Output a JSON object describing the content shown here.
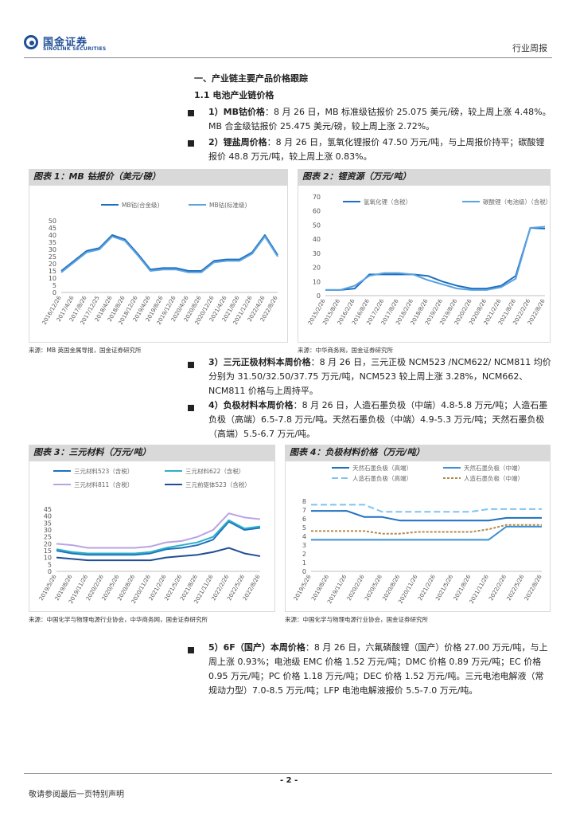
{
  "header": {
    "logo_cn": "国金证券",
    "logo_en": "SINOLINK SECURITIES",
    "report_type": "行业周报"
  },
  "section": {
    "h1": "一、产业链主要产品价格跟踪",
    "h2": "1.1 电池产业链价格"
  },
  "paras": {
    "p1_head": "1）MB钴价格",
    "p1_body": "：8 月 26 日，MB 标准级钴报价 25.075 美元/磅，较上周上涨 4.48%。MB 合金级钴报价 25.475 美元/磅，较上周上涨 2.72%。",
    "p2_head": "2）锂盐周价格",
    "p2_body": "：8 月 26 日，氢氧化锂报价 47.50 万元/吨，与上周报价持平；碳酸锂报价 48.8 万元/吨，较上周上涨 0.83%。",
    "p3_head": "3）三元正极材料本周价格",
    "p3_body": "：8 月 26 日，三元正极 NCM523 /NCM622/ NCM811 均价分别为 31.50/32.50/37.75 万元/吨，NCM523 较上周上涨 3.28%，NCM662、NCM811 价格与上周持平。",
    "p4_head": "4）负极材料本周价格",
    "p4_body": "：8 月 26 日，人造石墨负极（中端）4.8-5.8 万元/吨；人造石墨负极（高端）6.5-7.8 万元/吨。天然石墨负极（中端）4.9-5.3 万元/吨；天然石墨负极（高端）5.5-6.7 万元/吨。",
    "p5_head": "5）6F（国产）本周价格",
    "p5_body": "：8 月 26 日，六氟磷酸锂（国产）价格 27.00 万元/吨，与上周上涨 0.93%；电池级 EMC 价格 1.52 万元/吨；DMC 价格 0.89 万元/吨；EC 价格 0.95 万元/吨；PC 价格 1.18 万元/吨；DEC 价格 1.52 万元/吨。三元电池电解液（常规动力型）7.0-8.5 万元/吨；LFP 电池电解液报价 5.5-7.0 万元/吨。"
  },
  "figures": {
    "fig1_title": "图表 1：MB 钴报价（美元/磅）",
    "fig1_source": "来源：MB 英国金属导报，国金证券研究所",
    "fig2_title": "图表 2：锂资源（万元/吨）",
    "fig2_source": "来源：中华商务网，国金证券研究所",
    "fig3_title": "图表 3：三元材料（万元/吨）",
    "fig3_source": "来源：中国化学与物理电源行业协会，中华商务网，国金证券研究所",
    "fig4_title": "图表 4：负极材料价格（万元/吨）",
    "fig4_source": "来源：中国化学与物理电源行业协会，国金证券研究所"
  },
  "footer": {
    "page_no": "- 2 -",
    "disclaimer": "敬请参阅最后一页特别声明"
  },
  "chart_data": [
    {
      "id": "fig1",
      "type": "line",
      "title": "MB 钴报价（美元/磅）",
      "ylim": [
        0,
        50
      ],
      "yticks": [
        0,
        5,
        10,
        15,
        20,
        25,
        30,
        35,
        40,
        45,
        50
      ],
      "categories": [
        "2016/12/26",
        "2017/4/26",
        "2017/8/26",
        "2017/12/25",
        "2018/4/26",
        "2018/8/26",
        "2018/12/26",
        "2019/4/26",
        "2019/8/26",
        "2019/12/26",
        "2020/4/26",
        "2020/8/26",
        "2020/12/26",
        "2021/4/26",
        "2021/8/26",
        "2021/12/26",
        "2022/4/26",
        "2022/8/26"
      ],
      "series": [
        {
          "name": "MB钴(合金级)",
          "color": "#1f6fc0",
          "values": [
            15,
            22,
            29,
            31,
            40,
            37,
            27,
            16,
            17,
            17,
            15,
            15,
            22,
            23,
            23,
            28,
            40,
            26
          ]
        },
        {
          "name": "MB钴(标准级)",
          "color": "#5ba3e0",
          "values": [
            14,
            21,
            28,
            30,
            39,
            36,
            26,
            15,
            16,
            16,
            14,
            14,
            21,
            22,
            22,
            27,
            39,
            25
          ]
        }
      ]
    },
    {
      "id": "fig2",
      "type": "line",
      "title": "锂资源（万元/吨）",
      "ylim": [
        0,
        70
      ],
      "yticks": [
        0,
        10,
        20,
        30,
        40,
        50,
        60,
        70
      ],
      "categories": [
        "2015/2/26",
        "2015/8/26",
        "2016/2/26",
        "2016/8/26",
        "2017/2/26",
        "2017/8/26",
        "2018/2/26",
        "2018/8/26",
        "2019/2/26",
        "2019/8/26",
        "2020/2/26",
        "2020/8/26",
        "2021/2/26",
        "2021/8/26",
        "2022/2/26",
        "2022/8/26"
      ],
      "series": [
        {
          "name": "氢氧化锂（含税）",
          "color": "#1f6fc0",
          "values": [
            4,
            4,
            5,
            15,
            15,
            15,
            15,
            14,
            10,
            7,
            5,
            5,
            7,
            14,
            48,
            47.5
          ]
        },
        {
          "name": "碳酸锂（电池级）（含税）",
          "color": "#5ba3e0",
          "values": [
            4,
            4,
            7,
            14,
            16,
            16,
            15,
            11,
            8,
            5,
            4,
            4,
            6,
            12,
            48,
            48.8
          ]
        }
      ]
    },
    {
      "id": "fig3",
      "type": "line",
      "title": "三元材料（万元/吨）",
      "ylim": [
        0,
        45
      ],
      "yticks": [
        0,
        5,
        10,
        15,
        20,
        25,
        30,
        35,
        40,
        45
      ],
      "categories": [
        "2019/5/26",
        "2019/8/26",
        "2019/11/26",
        "2020/2/26",
        "2020/5/26",
        "2020/8/26",
        "2020/11/26",
        "2021/2/26",
        "2021/5/26",
        "2021/8/26",
        "2021/11/26",
        "2022/2/26",
        "2022/5/26",
        "2022/8/26"
      ],
      "series": [
        {
          "name": "三元材料523（含税）",
          "color": "#1f6fc0",
          "values": [
            15,
            13,
            12,
            12,
            12,
            12,
            13,
            16,
            17,
            19,
            23,
            36,
            30,
            31.5
          ]
        },
        {
          "name": "三元材料622（含税）",
          "color": "#2bb0c8",
          "values": [
            16,
            14,
            13,
            13,
            13,
            13,
            14,
            17,
            19,
            21,
            25,
            37,
            31,
            32.5
          ]
        },
        {
          "name": "三元材料811（含税）",
          "color": "#b9a3e3",
          "values": [
            20,
            19,
            17,
            17,
            17,
            17,
            18,
            21,
            22,
            25,
            30,
            42,
            39,
            37.75
          ]
        },
        {
          "name": "三元前驱体523（含税）",
          "color": "#1f4e96",
          "values": [
            10,
            9,
            8,
            8,
            8,
            8,
            8,
            10,
            11,
            12,
            14,
            17,
            13,
            11
          ]
        }
      ]
    },
    {
      "id": "fig4",
      "type": "line",
      "title": "负极材料价格（万元/吨）",
      "ylim": [
        0,
        8
      ],
      "yticks": [
        0,
        1,
        2,
        3,
        4,
        5,
        6,
        7,
        8
      ],
      "categories": [
        "2019/5/26",
        "2019/8/26",
        "2019/11/26",
        "2020/2/26",
        "2020/5/26",
        "2020/8/26",
        "2020/11/26",
        "2021/2/26",
        "2021/5/26",
        "2021/8/26",
        "2021/11/26",
        "2022/2/26",
        "2022/5/26",
        "2022/8/26"
      ],
      "series": [
        {
          "name": "天然石墨负极（高端）",
          "color": "#1f6fc0",
          "dash": "",
          "values": [
            6.9,
            6.9,
            6.9,
            6.2,
            6.2,
            5.8,
            5.8,
            5.8,
            5.8,
            5.8,
            5.8,
            6.1,
            6.1,
            6.1
          ]
        },
        {
          "name": "天然石墨负极（中端）",
          "color": "#3a8fd6",
          "dash": "",
          "values": [
            3.6,
            3.6,
            3.6,
            3.6,
            3.6,
            3.6,
            3.6,
            3.6,
            3.6,
            3.6,
            3.6,
            5.1,
            5.1,
            5.1
          ]
        },
        {
          "name": "人造石墨负极（高端）",
          "color": "#7ec4ee",
          "dash": "8,4",
          "values": [
            7.6,
            7.6,
            7.6,
            7.6,
            6.8,
            6.8,
            6.8,
            6.8,
            6.8,
            6.8,
            7.1,
            7.1,
            7.1,
            7.1
          ]
        },
        {
          "name": "人造石墨负极（中端）",
          "color": "#b08a4a",
          "dash": "3,2",
          "values": [
            4.6,
            4.6,
            4.6,
            4.6,
            4.3,
            4.3,
            4.5,
            4.5,
            4.5,
            4.5,
            4.8,
            5.3,
            5.3,
            5.3
          ]
        }
      ]
    }
  ]
}
